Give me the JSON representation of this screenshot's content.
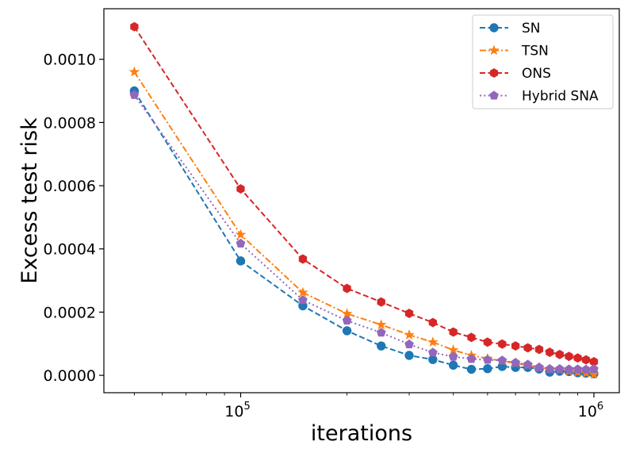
{
  "chart_data": {
    "type": "line",
    "title": "",
    "xlabel": "iterations",
    "ylabel": "Excess test risk",
    "xscale": "log",
    "xlim": [
      41000,
      1180000
    ],
    "ylim": [
      -5.5e-05,
      0.00116
    ],
    "grid": false,
    "legend_position": "top-right",
    "x_tick_labels": [
      {
        "value": 100000,
        "base": "10",
        "exp": "5"
      },
      {
        "value": 1000000,
        "base": "10",
        "exp": "6"
      }
    ],
    "y_ticks": [
      0,
      0.0002,
      0.0004,
      0.0006,
      0.0008,
      0.001
    ],
    "y_tick_labels": [
      "0.0000",
      "0.0002",
      "0.0004",
      "0.0006",
      "0.0008",
      "0.0010"
    ],
    "x": [
      50000,
      100000,
      150000,
      200000,
      250000,
      300000,
      350000,
      400000,
      450000,
      500000,
      550000,
      600000,
      650000,
      700000,
      750000,
      800000,
      850000,
      900000,
      950000,
      1000000
    ],
    "series": [
      {
        "name": "SN",
        "color": "#1f77b4",
        "dash": "dashed",
        "marker": "circle",
        "values": [
          0.0009,
          0.000362,
          0.00022,
          0.000141,
          9.3e-05,
          6.3e-05,
          5e-05,
          3.2e-05,
          1.9e-05,
          2.1e-05,
          2.8e-05,
          2.5e-05,
          2.5e-05,
          2e-05,
          1e-05,
          1.3e-05,
          1.2e-05,
          8e-06,
          7e-06,
          5e-06
        ]
      },
      {
        "name": "TSN",
        "color": "#ff7f0e",
        "dash": "dashdot",
        "marker": "star",
        "values": [
          0.00096,
          0.000445,
          0.000262,
          0.000195,
          0.00016,
          0.000128,
          0.000105,
          8e-05,
          6.3e-05,
          5.3e-05,
          4.6e-05,
          3.8e-05,
          3.2e-05,
          2.5e-05,
          2e-05,
          1.7e-05,
          1.3e-05,
          1e-05,
          7e-06,
          3e-06
        ]
      },
      {
        "name": "ONS",
        "color": "#d62728",
        "dash": "dashed",
        "marker": "hexagon",
        "values": [
          0.001103,
          0.00059,
          0.000368,
          0.000275,
          0.000232,
          0.000196,
          0.000167,
          0.000137,
          0.00012,
          0.000105,
          9.9e-05,
          9.3e-05,
          8.7e-05,
          8.2e-05,
          7.3e-05,
          6.6e-05,
          6e-05,
          5.5e-05,
          4.9e-05,
          4.3e-05
        ]
      },
      {
        "name": "Hybrid SNA",
        "color": "#9467bd",
        "dash": "dotted",
        "marker": "pentagon",
        "values": [
          0.000887,
          0.000417,
          0.000238,
          0.000173,
          0.000135,
          9.8e-05,
          7.2e-05,
          5.9e-05,
          5.2e-05,
          4.9e-05,
          4.7e-05,
          4e-05,
          3.4e-05,
          2.5e-05,
          2e-05,
          2e-05,
          1.9e-05,
          1.9e-05,
          1.8e-05,
          2e-05
        ]
      }
    ]
  }
}
